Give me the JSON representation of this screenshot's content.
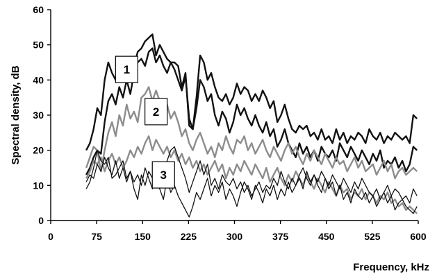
{
  "chart_data": {
    "type": "line",
    "title": "",
    "xlabel": "Frequency, kHz",
    "ylabel": "Spectral density, dB",
    "xlim": [
      0,
      600
    ],
    "ylim": [
      0,
      60
    ],
    "xticks": [
      0,
      75,
      150,
      225,
      300,
      375,
      450,
      525,
      600
    ],
    "yticks": [
      0,
      10,
      20,
      30,
      40,
      50,
      60
    ],
    "grid": false,
    "legend": "none",
    "series": [
      {
        "color": "#111111",
        "width": 2.4,
        "x": [
          58,
          64,
          70,
          76,
          82,
          88,
          94,
          100,
          106,
          112,
          118,
          124,
          130,
          136,
          142,
          148,
          154,
          160,
          166,
          172,
          178,
          184,
          190,
          196,
          202,
          208,
          214,
          220,
          226,
          232,
          238,
          244,
          250,
          256,
          262,
          268,
          274,
          280,
          286,
          292,
          298,
          304,
          310,
          316,
          322,
          328,
          334,
          340,
          346,
          352,
          358,
          364,
          370,
          376,
          382,
          388,
          394,
          400,
          406,
          412,
          418,
          424,
          430,
          436,
          442,
          448,
          454,
          460,
          466,
          472,
          478,
          484,
          490,
          496,
          502,
          508,
          514,
          520,
          526,
          532,
          538,
          544,
          550,
          556,
          562,
          568,
          574,
          580,
          586,
          592,
          598
        ],
        "y": [
          20,
          22,
          26,
          32,
          30,
          40,
          45,
          42,
          40,
          44,
          43,
          45,
          46,
          44,
          48,
          49,
          51,
          52,
          53,
          47,
          50,
          48,
          46,
          45,
          45,
          44,
          38,
          42,
          27,
          26,
          35,
          47,
          45,
          40,
          42,
          38,
          35,
          34,
          36,
          33,
          35,
          39,
          36,
          38,
          37,
          34,
          36,
          34,
          37,
          35,
          32,
          34,
          28,
          30,
          33,
          29,
          26,
          25,
          27,
          26,
          27,
          24,
          25,
          23,
          26,
          23,
          24,
          22,
          26,
          23,
          25,
          22,
          24,
          23,
          25,
          24,
          22,
          26,
          24,
          23,
          25,
          22,
          24,
          23,
          25,
          24,
          23,
          24,
          22,
          30,
          29
        ]
      },
      {
        "color": "#111111",
        "width": 2.4,
        "x": [
          58,
          64,
          70,
          76,
          82,
          88,
          94,
          100,
          106,
          112,
          118,
          124,
          130,
          136,
          142,
          148,
          154,
          160,
          166,
          172,
          178,
          184,
          190,
          196,
          202,
          208,
          214,
          220,
          226,
          232,
          238,
          244,
          250,
          256,
          262,
          268,
          274,
          280,
          286,
          292,
          298,
          304,
          310,
          316,
          322,
          328,
          334,
          340,
          346,
          352,
          358,
          364,
          370,
          376,
          382,
          388,
          394,
          400,
          406,
          412,
          418,
          424,
          430,
          436,
          442,
          448,
          454,
          460,
          466,
          472,
          478,
          484,
          490,
          496,
          502,
          508,
          514,
          520,
          526,
          532,
          538,
          544,
          550,
          556,
          562,
          568,
          574,
          580,
          586,
          592,
          598
        ],
        "y": [
          13,
          15,
          18,
          20,
          19,
          28,
          34,
          36,
          33,
          38,
          35,
          40,
          36,
          42,
          45,
          46,
          44,
          48,
          49,
          45,
          47,
          44,
          42,
          45,
          43,
          40,
          37,
          41,
          29,
          26,
          32,
          40,
          38,
          34,
          36,
          30,
          27,
          31,
          29,
          25,
          28,
          33,
          30,
          32,
          29,
          27,
          30,
          27,
          25,
          28,
          24,
          26,
          21,
          23,
          26,
          22,
          20,
          18,
          22,
          19,
          21,
          18,
          20,
          17,
          21,
          19,
          18,
          20,
          17,
          22,
          20,
          18,
          21,
          19,
          17,
          20,
          18,
          16,
          19,
          17,
          20,
          15,
          17,
          16,
          18,
          15,
          17,
          14,
          16,
          21,
          20
        ]
      },
      {
        "color": "#8c8c8c",
        "width": 2.4,
        "x": [
          58,
          64,
          70,
          76,
          82,
          88,
          94,
          100,
          106,
          112,
          118,
          124,
          130,
          136,
          142,
          148,
          154,
          160,
          166,
          172,
          178,
          184,
          190,
          196,
          202,
          208,
          214,
          220,
          226,
          232,
          238,
          244,
          250,
          256,
          262,
          268,
          274,
          280,
          286,
          292,
          298,
          304,
          310,
          316,
          322,
          328,
          334,
          340,
          346,
          352,
          358,
          364,
          370,
          376,
          382,
          388,
          394,
          400,
          406,
          412,
          418,
          424,
          430,
          436,
          442,
          448,
          454,
          460,
          466,
          472,
          478,
          484,
          490,
          496,
          502,
          508,
          514,
          520,
          526,
          532,
          538,
          544,
          550,
          556,
          562,
          568,
          574,
          580,
          586,
          592,
          598
        ],
        "y": [
          15,
          18,
          21,
          20,
          14,
          20,
          25,
          28,
          24,
          30,
          27,
          33,
          29,
          31,
          28,
          35,
          36,
          38,
          34,
          37,
          34,
          31,
          33,
          29,
          31,
          28,
          24,
          26,
          22,
          20,
          23,
          25,
          22,
          19,
          21,
          18,
          22,
          20,
          24,
          21,
          19,
          23,
          22,
          24,
          20,
          22,
          19,
          21,
          23,
          20,
          18,
          21,
          19,
          17,
          20,
          22,
          19,
          21,
          18,
          16,
          19,
          17,
          20,
          18,
          16,
          19,
          17,
          15,
          18,
          16,
          17,
          14,
          16,
          18,
          15,
          17,
          14,
          15,
          16,
          13,
          15,
          17,
          14,
          16,
          12,
          14,
          15,
          13,
          14,
          15,
          14
        ]
      },
      {
        "color": "#8c8c8c",
        "width": 2.4,
        "x": [
          58,
          64,
          70,
          76,
          82,
          88,
          94,
          100,
          106,
          112,
          118,
          124,
          130,
          136,
          142,
          148,
          154,
          160,
          166,
          172,
          178,
          184,
          190,
          196,
          202,
          208,
          214,
          220,
          226,
          232,
          238,
          244,
          250,
          256,
          262,
          268,
          274,
          280,
          286,
          292,
          298,
          304,
          310,
          316,
          322,
          328,
          334,
          340,
          346,
          352,
          358,
          364,
          370,
          376,
          382,
          388,
          394,
          400,
          406,
          412,
          418,
          424,
          430,
          436,
          442,
          448,
          454,
          460,
          466,
          472,
          478,
          484,
          490,
          496,
          502,
          508,
          514,
          520,
          526,
          532,
          538,
          544,
          550,
          556,
          562,
          568,
          574,
          580,
          586,
          592,
          598
        ],
        "y": [
          12,
          14,
          17,
          16,
          18,
          14,
          17,
          19,
          16,
          18,
          15,
          17,
          20,
          18,
          21,
          19,
          22,
          24,
          20,
          23,
          21,
          19,
          21,
          18,
          20,
          17,
          19,
          16,
          18,
          15,
          17,
          14,
          16,
          13,
          15,
          17,
          14,
          16,
          12,
          15,
          13,
          16,
          14,
          17,
          15,
          13,
          16,
          14,
          12,
          15,
          11,
          13,
          15,
          12,
          10,
          13,
          11,
          14,
          12,
          10,
          13,
          11,
          9,
          12,
          10,
          8,
          11,
          9,
          7,
          10,
          8,
          9,
          6,
          8,
          7,
          9,
          6,
          8,
          7,
          5,
          7,
          6,
          8,
          5,
          6,
          4,
          5,
          3,
          4,
          3,
          2
        ]
      },
      {
        "color": "#111111",
        "width": 1.3,
        "x": [
          58,
          64,
          70,
          76,
          82,
          88,
          94,
          100,
          106,
          112,
          118,
          124,
          130,
          136,
          142,
          148,
          154,
          160,
          166,
          172,
          178,
          184,
          190,
          196,
          202,
          208,
          214,
          220,
          226,
          232,
          238,
          244,
          250,
          256,
          262,
          268,
          274,
          280,
          286,
          292,
          298,
          304,
          310,
          316,
          322,
          328,
          334,
          340,
          346,
          352,
          358,
          364,
          370,
          376,
          382,
          388,
          394,
          400,
          406,
          412,
          418,
          424,
          430,
          436,
          442,
          448,
          454,
          460,
          466,
          472,
          478,
          484,
          490,
          496,
          502,
          508,
          514,
          520,
          526,
          532,
          538,
          544,
          550,
          556,
          562,
          568,
          574,
          580,
          586,
          592,
          598
        ],
        "y": [
          9,
          11,
          15,
          20,
          17,
          16,
          18,
          12,
          13,
          15,
          17,
          12,
          14,
          11,
          13,
          10,
          15,
          12,
          9,
          11,
          16,
          14,
          17,
          20,
          21,
          18,
          15,
          12,
          8,
          11,
          14,
          17,
          13,
          16,
          10,
          12,
          9,
          13,
          11,
          10,
          12,
          9,
          11,
          8,
          10,
          7,
          9,
          11,
          8,
          10,
          9,
          12,
          10,
          14,
          11,
          9,
          12,
          10,
          13,
          15,
          12,
          10,
          13,
          11,
          14,
          12,
          10,
          13,
          11,
          9,
          12,
          10,
          8,
          11,
          9,
          12,
          10,
          8,
          7,
          9,
          6,
          8,
          10,
          7,
          9,
          8,
          6,
          7,
          5,
          9,
          7
        ]
      },
      {
        "color": "#111111",
        "width": 1.3,
        "x": [
          58,
          64,
          70,
          76,
          82,
          88,
          94,
          100,
          106,
          112,
          118,
          124,
          130,
          136,
          142,
          148,
          154,
          160,
          166,
          172,
          178,
          184,
          190,
          196,
          202,
          208,
          214,
          220,
          226,
          232,
          238,
          244,
          250,
          256,
          262,
          268,
          274,
          280,
          286,
          292,
          298,
          304,
          310,
          316,
          322,
          328,
          334,
          340,
          346,
          352,
          358,
          364,
          370,
          376,
          382,
          388,
          394,
          400,
          406,
          412,
          418,
          424,
          430,
          436,
          442,
          448,
          454,
          460,
          466,
          472,
          478,
          484,
          490,
          496,
          502,
          508,
          514,
          520,
          526,
          532,
          538,
          544,
          550,
          556,
          562,
          568,
          574,
          580,
          586,
          592,
          598
        ],
        "y": [
          11,
          13,
          12,
          16,
          14,
          18,
          15,
          13,
          17,
          12,
          15,
          11,
          14,
          9,
          6,
          13,
          10,
          14,
          12,
          11,
          9,
          6,
          12,
          8,
          10,
          7,
          5,
          3,
          1,
          4,
          8,
          6,
          9,
          12,
          7,
          10,
          8,
          11,
          6,
          9,
          7,
          4,
          8,
          11,
          9,
          6,
          10,
          8,
          5,
          9,
          7,
          10,
          6,
          9,
          7,
          11,
          8,
          10,
          12,
          9,
          14,
          11,
          13,
          10,
          8,
          12,
          9,
          11,
          7,
          10,
          6,
          8,
          5,
          9,
          7,
          6,
          8,
          5,
          7,
          4,
          6,
          8,
          5,
          7,
          3,
          5,
          6,
          4,
          3,
          2,
          4
        ]
      }
    ],
    "annotations": [
      {
        "text": "1",
        "x": 124,
        "y": 43
      },
      {
        "text": "2",
        "x": 172,
        "y": 31
      },
      {
        "text": "3",
        "x": 184,
        "y": 13
      }
    ]
  }
}
